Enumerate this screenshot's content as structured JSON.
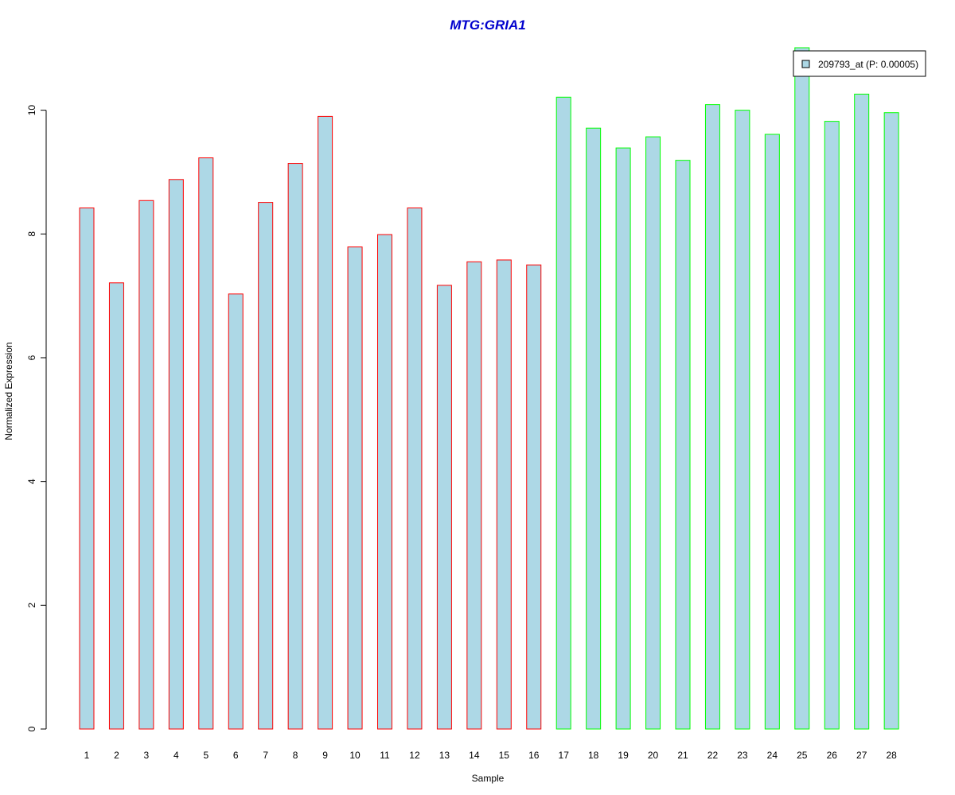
{
  "chart_data": {
    "type": "bar",
    "title": "MTG:GRIA1",
    "xlabel": "Sample",
    "ylabel": "Normalized Expression",
    "categories": [
      "1",
      "2",
      "3",
      "4",
      "5",
      "6",
      "7",
      "8",
      "9",
      "10",
      "11",
      "12",
      "13",
      "14",
      "15",
      "16",
      "17",
      "18",
      "19",
      "20",
      "21",
      "22",
      "23",
      "24",
      "25",
      "26",
      "27",
      "28"
    ],
    "series": [
      {
        "name": "209793_at (P: 0.00005)",
        "values": [
          8.42,
          7.21,
          8.54,
          8.88,
          9.23,
          7.03,
          8.51,
          9.14,
          9.9,
          7.79,
          7.99,
          8.42,
          7.17,
          7.55,
          7.58,
          7.5,
          10.21,
          9.71,
          9.39,
          9.57,
          9.19,
          10.09,
          10.0,
          9.61,
          11.01,
          9.82,
          10.26,
          9.96
        ]
      }
    ],
    "group_sizes": [
      16,
      12
    ],
    "ylim": [
      0,
      11.01
    ],
    "yticks": [
      0,
      2,
      4,
      6,
      8,
      10
    ],
    "grid": false,
    "legend_position": "top-right",
    "colors": {
      "bar_fill": "#add8e6",
      "group1_border": "#ff0000",
      "group2_border": "#00ff00",
      "title": "#0000cd",
      "axis": "#000000"
    }
  }
}
